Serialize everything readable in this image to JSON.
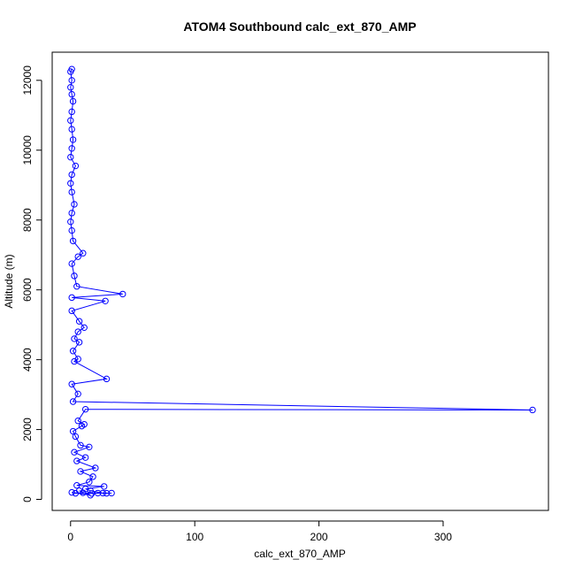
{
  "chart_data": {
    "type": "line",
    "title": "ATOM4 Southbound calc_ext_870_AMP",
    "xlabel": "calc_ext_870_AMP",
    "ylabel": "Altitude (m)",
    "xlim": [
      0,
      370
    ],
    "ylim": [
      170,
      12320
    ],
    "x_ticks": [
      0,
      100,
      200,
      300
    ],
    "y_ticks": [
      0,
      2000,
      4000,
      6000,
      8000,
      10000,
      12000
    ],
    "grid": false,
    "legend": "none",
    "marker": "open-circle",
    "colors": {
      "series": "#0000ff",
      "axis": "#000000"
    },
    "series": [
      {
        "values": [
          {
            "x": 1,
            "y": 12320
          },
          {
            "x": 0,
            "y": 12250
          },
          {
            "x": 1,
            "y": 12000
          },
          {
            "x": 0,
            "y": 11800
          },
          {
            "x": 1,
            "y": 11600
          },
          {
            "x": 2,
            "y": 11400
          },
          {
            "x": 1,
            "y": 11100
          },
          {
            "x": 0,
            "y": 10850
          },
          {
            "x": 1,
            "y": 10600
          },
          {
            "x": 2,
            "y": 10300
          },
          {
            "x": 1,
            "y": 10050
          },
          {
            "x": 0,
            "y": 9800
          },
          {
            "x": 4,
            "y": 9550
          },
          {
            "x": 1,
            "y": 9300
          },
          {
            "x": 0,
            "y": 9050
          },
          {
            "x": 1,
            "y": 8800
          },
          {
            "x": 3,
            "y": 8450
          },
          {
            "x": 1,
            "y": 8200
          },
          {
            "x": 0,
            "y": 7950
          },
          {
            "x": 1,
            "y": 7700
          },
          {
            "x": 2,
            "y": 7400
          },
          {
            "x": 10,
            "y": 7050
          },
          {
            "x": 6,
            "y": 6950
          },
          {
            "x": 1,
            "y": 6750
          },
          {
            "x": 3,
            "y": 6400
          },
          {
            "x": 5,
            "y": 6100
          },
          {
            "x": 42,
            "y": 5880
          },
          {
            "x": 1,
            "y": 5780
          },
          {
            "x": 28,
            "y": 5680
          },
          {
            "x": 1,
            "y": 5400
          },
          {
            "x": 7,
            "y": 5100
          },
          {
            "x": 11,
            "y": 4920
          },
          {
            "x": 6,
            "y": 4800
          },
          {
            "x": 3,
            "y": 4600
          },
          {
            "x": 7,
            "y": 4500
          },
          {
            "x": 2,
            "y": 4250
          },
          {
            "x": 6,
            "y": 4020
          },
          {
            "x": 3,
            "y": 3950
          },
          {
            "x": 29,
            "y": 3450
          },
          {
            "x": 1,
            "y": 3300
          },
          {
            "x": 6,
            "y": 3020
          },
          {
            "x": 2,
            "y": 2800
          },
          {
            "x": 372,
            "y": 2560
          },
          {
            "x": 12,
            "y": 2580
          },
          {
            "x": 6,
            "y": 2250
          },
          {
            "x": 11,
            "y": 2150
          },
          {
            "x": 9,
            "y": 2100
          },
          {
            "x": 2,
            "y": 1950
          },
          {
            "x": 4,
            "y": 1800
          },
          {
            "x": 8,
            "y": 1550
          },
          {
            "x": 15,
            "y": 1500
          },
          {
            "x": 3,
            "y": 1350
          },
          {
            "x": 12,
            "y": 1200
          },
          {
            "x": 5,
            "y": 1100
          },
          {
            "x": 20,
            "y": 900
          },
          {
            "x": 8,
            "y": 800
          },
          {
            "x": 18,
            "y": 650
          },
          {
            "x": 15,
            "y": 500
          },
          {
            "x": 5,
            "y": 400
          },
          {
            "x": 27,
            "y": 370
          },
          {
            "x": 12,
            "y": 300
          },
          {
            "x": 16,
            "y": 250
          },
          {
            "x": 26,
            "y": 180
          },
          {
            "x": 33,
            "y": 180
          },
          {
            "x": 29,
            "y": 175
          },
          {
            "x": 22,
            "y": 180
          },
          {
            "x": 17,
            "y": 170
          },
          {
            "x": 10,
            "y": 190
          },
          {
            "x": 4,
            "y": 175
          },
          {
            "x": 1,
            "y": 200
          },
          {
            "x": 16,
            "y": 120
          },
          {
            "x": 7,
            "y": 250
          }
        ]
      }
    ]
  }
}
